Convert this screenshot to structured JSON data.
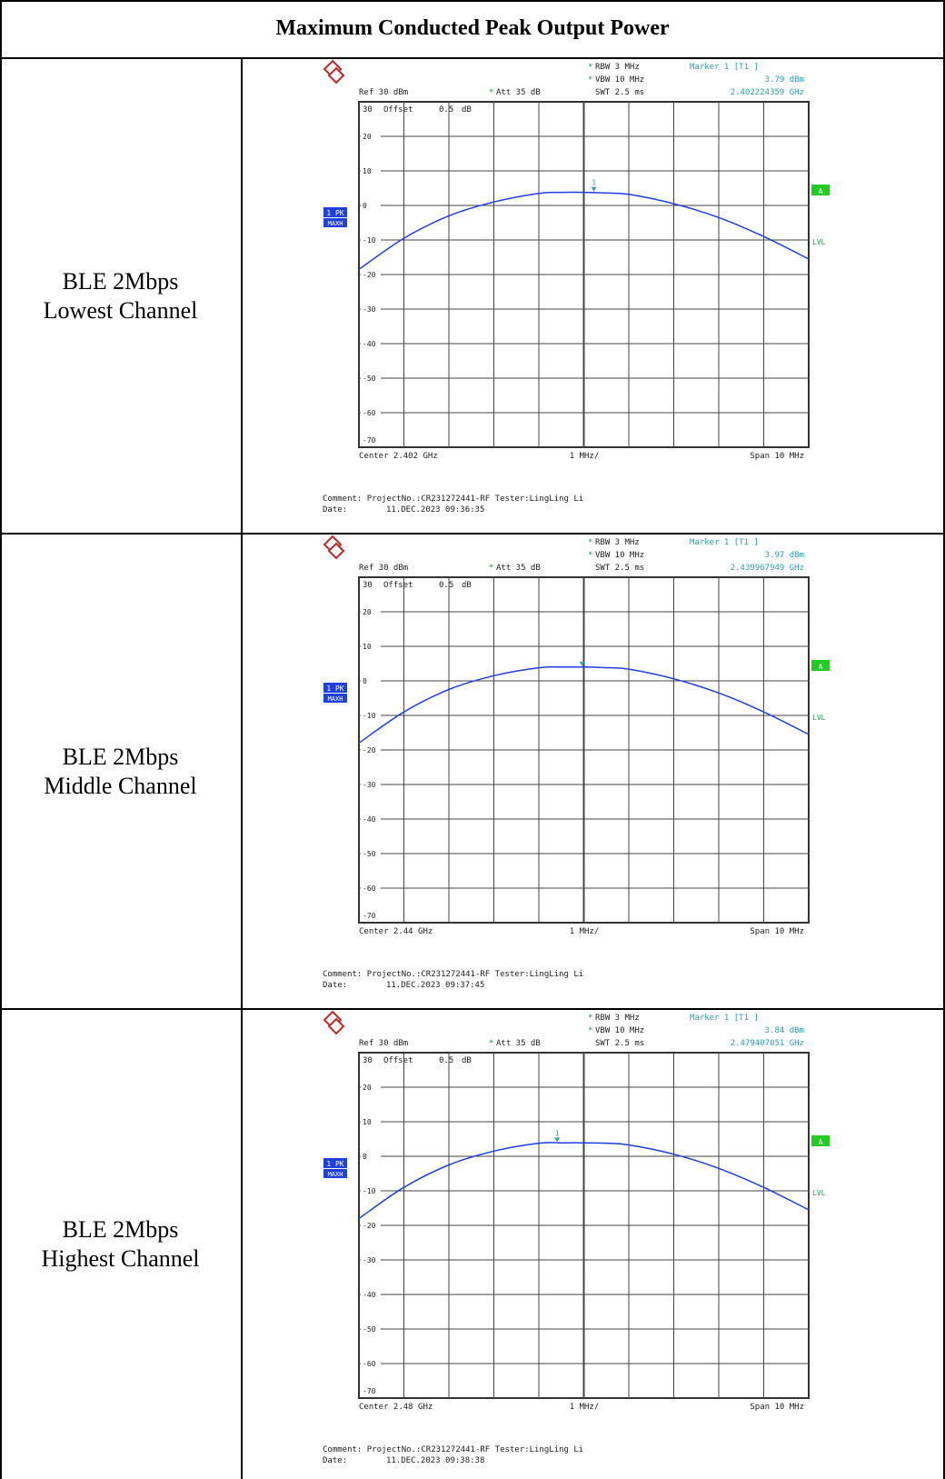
{
  "title": "Maximum Conducted  Peak Output Power",
  "colors": {
    "trace": "#1f3fe0",
    "marker": "#2aa0b0",
    "badge_blue": "#1f3fe0",
    "badge_green": "#22cc22"
  },
  "common": {
    "ref": "Ref   30 dBm",
    "att_star": "*",
    "att": "Att   35 dB",
    "rbw_star": "*",
    "rbw": "RBW  3 MHz",
    "vbw_star": "*",
    "vbw": "VBW  10 MHz",
    "swt": "SWT  2.5 ms",
    "offset_30": "30",
    "offset_label": "Offset",
    "offset_value": "0.5",
    "offset_unit": "dB",
    "badge_pk": "1 PK",
    "badge_maxh": "MAXH",
    "badge_a": "A",
    "lvl": "LVL",
    "per_div": "1 MHz/",
    "span": "Span  10 MHz",
    "comment": "Comment: ProjectNo.:CR231272441-RF  Tester:LingLing Li",
    "date_label": "Date:",
    "marker_title": "Marker 1 [T1 ]",
    "y_ticks": [
      "20",
      "10",
      "0",
      "-10",
      "-20",
      "-30",
      "-40",
      "-50",
      "-60",
      "-70"
    ]
  },
  "rows": [
    {
      "label_line1": "BLE 2Mbps",
      "label_line2": "Lowest Channel",
      "center": "Center  2.402 GHz",
      "marker_level": "3.79 dBm",
      "marker_freq": "2.402224359 GHz",
      "marker_number": "1",
      "date": "11.DEC.2023  09:36:35"
    },
    {
      "label_line1": "BLE 2Mbps",
      "label_line2": "Middle Channel",
      "center": "Center  2.44 GHz",
      "marker_level": "3.97 dBm",
      "marker_freq": "2.439967949 GHz",
      "marker_number": "",
      "date": "11.DEC.2023  09:37:45"
    },
    {
      "label_line1": "BLE 2Mbps",
      "label_line2": "Highest Channel",
      "center": "Center  2.48 GHz",
      "marker_level": "3.84 dBm",
      "marker_freq": "2.479407051 GHz",
      "marker_number": "1",
      "date": "11.DEC.2023  09:38:38"
    }
  ],
  "chart_data": [
    {
      "type": "line",
      "title": "",
      "xlabel": "Center  2.402 GHz",
      "ylabel": "",
      "x_unit": "MHz offset from center",
      "xlim": [
        -5,
        5
      ],
      "ylim": [
        -70,
        30
      ],
      "grid": true,
      "x": [
        -5,
        -4,
        -3,
        -2,
        -1,
        -0.5,
        0,
        0.5,
        1,
        2,
        3,
        4,
        5
      ],
      "series": [
        {
          "values": [
            -18.5,
            -9.5,
            -3,
            1,
            3.5,
            3.8,
            3.8,
            3.6,
            3.2,
            0.5,
            -3.5,
            -9,
            -15.5
          ]
        }
      ],
      "marker": {
        "x": 0.224359,
        "y": 3.79
      }
    },
    {
      "type": "line",
      "title": "",
      "xlabel": "Center  2.44 GHz",
      "ylabel": "",
      "x_unit": "MHz offset from center",
      "xlim": [
        -5,
        5
      ],
      "ylim": [
        -70,
        30
      ],
      "grid": true,
      "x": [
        -5,
        -4,
        -3,
        -2,
        -1,
        -0.5,
        0,
        0.5,
        1,
        2,
        3,
        4,
        5
      ],
      "series": [
        {
          "values": [
            -18,
            -9,
            -2.5,
            1.5,
            3.8,
            4,
            4,
            3.8,
            3.4,
            0.6,
            -3.5,
            -9,
            -15.5
          ]
        }
      ],
      "marker": {
        "x": -0.032051,
        "y": 3.97
      }
    },
    {
      "type": "line",
      "title": "",
      "xlabel": "Center  2.48 GHz",
      "ylabel": "",
      "x_unit": "MHz offset from center",
      "xlim": [
        -5,
        5
      ],
      "ylim": [
        -70,
        30
      ],
      "grid": true,
      "x": [
        -5,
        -4,
        -3,
        -2,
        -1,
        -0.5,
        0,
        0.5,
        1,
        2,
        3,
        4,
        5
      ],
      "series": [
        {
          "values": [
            -18,
            -9,
            -2.5,
            1.5,
            3.8,
            3.9,
            3.9,
            3.8,
            3.3,
            0.6,
            -3.5,
            -9,
            -15.5
          ]
        }
      ],
      "marker": {
        "x": -0.592949,
        "y": 3.84
      }
    }
  ]
}
